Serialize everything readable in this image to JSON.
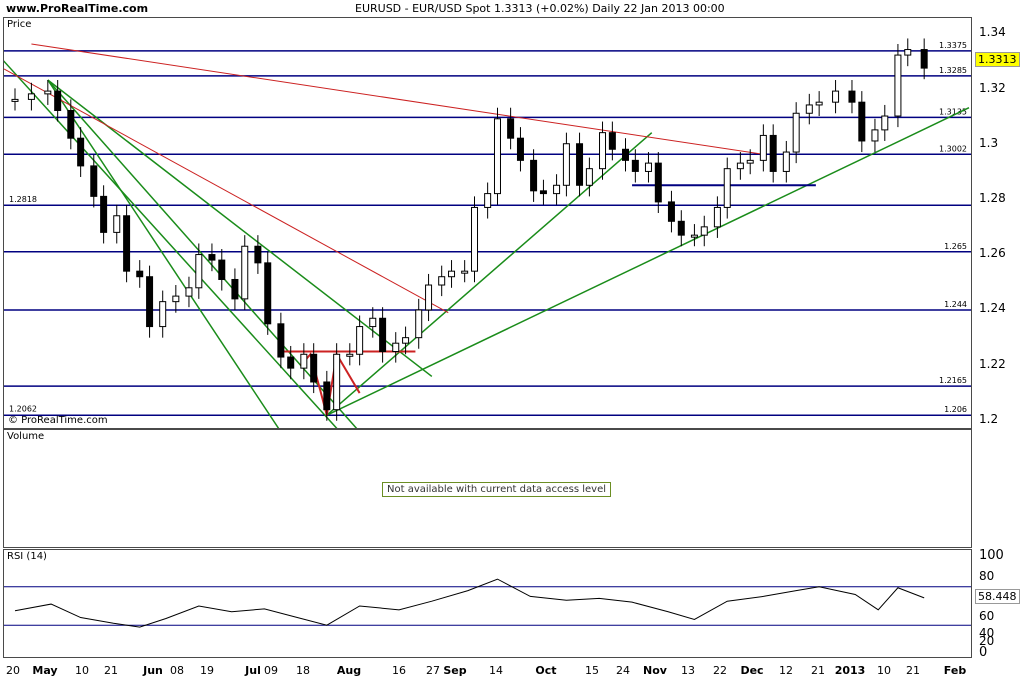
{
  "header": {
    "site": "www.ProRealTime.com",
    "instrument": "EURUSD - EUR/USD Spot    1.3313 (+0.02%)    Daily  22 Jan 2013 00:00"
  },
  "price_panel": {
    "title": "Price",
    "copyright": "© ProRealTime.com",
    "last_price_tag": "1.3313",
    "axis_ticks": [
      "1.34",
      "1.32",
      "1.3",
      "1.28",
      "1.26",
      "1.24",
      "1.22",
      "1.2"
    ],
    "level_labels": [
      {
        "label": "1.3375",
        "value": 1.3375
      },
      {
        "label": "1.3285",
        "value": 1.3285
      },
      {
        "label": "1.3135",
        "value": 1.3135
      },
      {
        "label": "1.3002",
        "value": 1.3002
      },
      {
        "label": "1.2818",
        "value": 1.2818
      },
      {
        "label": "1.265",
        "value": 1.265
      },
      {
        "label": "1.244",
        "value": 1.244
      },
      {
        "label": "1.2165",
        "value": 1.2165
      },
      {
        "label": "1.2062",
        "value": 1.2062
      },
      {
        "label": "1.206",
        "value": 1.206
      }
    ]
  },
  "volume_panel": {
    "title": "Volume",
    "notice": "Not available with current data access level"
  },
  "rsi_panel": {
    "title": "RSI (14)",
    "last_value_tag": "58.448",
    "axis_ticks": [
      "100",
      "80",
      "60",
      "40",
      "20",
      "0"
    ]
  },
  "x_axis": [
    "20",
    "May",
    "10",
    "21",
    "Jun",
    "08",
    "19",
    "Jul",
    "09",
    "18",
    "Aug",
    "16",
    "27",
    "Sep",
    "14",
    "Oct",
    "15",
    "24",
    "Nov",
    "13",
    "22",
    "Dec",
    "12",
    "21",
    "2013",
    "10",
    "21",
    "Feb"
  ],
  "colors": {
    "trend": "#1a8c1a",
    "resistance": "#cc2222",
    "level": "#000080",
    "rsi": "#000000"
  },
  "chart_data": {
    "type": "candlestick",
    "title": "EURUSD - EUR/USD Spot",
    "timeframe": "Daily",
    "last": {
      "close": 1.3313,
      "change_pct": 0.02,
      "date": "22 Jan 2013"
    },
    "x_range": [
      "2012-04-20",
      "2013-02-01"
    ],
    "ylim": [
      1.195,
      1.345
    ],
    "close_series": [
      [
        "2012-04-20",
        1.32
      ],
      [
        "2012-04-25",
        1.322
      ],
      [
        "2012-04-30",
        1.323
      ],
      [
        "2012-05-03",
        1.316
      ],
      [
        "2012-05-07",
        1.306
      ],
      [
        "2012-05-10",
        1.296
      ],
      [
        "2012-05-14",
        1.285
      ],
      [
        "2012-05-17",
        1.272
      ],
      [
        "2012-05-21",
        1.278
      ],
      [
        "2012-05-24",
        1.258
      ],
      [
        "2012-05-28",
        1.256
      ],
      [
        "2012-05-31",
        1.238
      ],
      [
        "2012-06-04",
        1.247
      ],
      [
        "2012-06-08",
        1.249
      ],
      [
        "2012-06-12",
        1.252
      ],
      [
        "2012-06-15",
        1.264
      ],
      [
        "2012-06-19",
        1.262
      ],
      [
        "2012-06-22",
        1.255
      ],
      [
        "2012-06-26",
        1.248
      ],
      [
        "2012-06-29",
        1.267
      ],
      [
        "2012-07-03",
        1.261
      ],
      [
        "2012-07-06",
        1.239
      ],
      [
        "2012-07-10",
        1.227
      ],
      [
        "2012-07-13",
        1.223
      ],
      [
        "2012-07-17",
        1.228
      ],
      [
        "2012-07-20",
        1.218
      ],
      [
        "2012-07-24",
        1.208
      ],
      [
        "2012-07-27",
        1.228
      ],
      [
        "2012-07-31",
        1.228
      ],
      [
        "2012-08-03",
        1.238
      ],
      [
        "2012-08-07",
        1.241
      ],
      [
        "2012-08-10",
        1.229
      ],
      [
        "2012-08-14",
        1.232
      ],
      [
        "2012-08-17",
        1.234
      ],
      [
        "2012-08-21",
        1.244
      ],
      [
        "2012-08-24",
        1.253
      ],
      [
        "2012-08-28",
        1.256
      ],
      [
        "2012-08-31",
        1.258
      ],
      [
        "2012-09-04",
        1.258
      ],
      [
        "2012-09-07",
        1.281
      ],
      [
        "2012-09-11",
        1.286
      ],
      [
        "2012-09-14",
        1.313
      ],
      [
        "2012-09-18",
        1.306
      ],
      [
        "2012-09-21",
        1.298
      ],
      [
        "2012-09-25",
        1.287
      ],
      [
        "2012-09-28",
        1.286
      ],
      [
        "2012-10-02",
        1.289
      ],
      [
        "2012-10-05",
        1.304
      ],
      [
        "2012-10-09",
        1.289
      ],
      [
        "2012-10-12",
        1.295
      ],
      [
        "2012-10-16",
        1.308
      ],
      [
        "2012-10-19",
        1.302
      ],
      [
        "2012-10-23",
        1.298
      ],
      [
        "2012-10-26",
        1.294
      ],
      [
        "2012-10-30",
        1.297
      ],
      [
        "2012-11-02",
        1.283
      ],
      [
        "2012-11-06",
        1.276
      ],
      [
        "2012-11-09",
        1.271
      ],
      [
        "2012-11-13",
        1.271
      ],
      [
        "2012-11-16",
        1.274
      ],
      [
        "2012-11-20",
        1.281
      ],
      [
        "2012-11-23",
        1.295
      ],
      [
        "2012-11-27",
        1.297
      ],
      [
        "2012-11-30",
        1.298
      ],
      [
        "2012-12-04",
        1.307
      ],
      [
        "2012-12-07",
        1.294
      ],
      [
        "2012-12-11",
        1.301
      ],
      [
        "2012-12-14",
        1.315
      ],
      [
        "2012-12-18",
        1.318
      ],
      [
        "2012-12-21",
        1.319
      ],
      [
        "2012-12-26",
        1.323
      ],
      [
        "2012-12-31",
        1.319
      ],
      [
        "2013-01-03",
        1.305
      ],
      [
        "2013-01-07",
        1.309
      ],
      [
        "2013-01-10",
        1.314
      ],
      [
        "2013-01-14",
        1.336
      ],
      [
        "2013-01-17",
        1.338
      ],
      [
        "2013-01-22",
        1.3313
      ]
    ],
    "horizontal_levels": [
      1.3375,
      1.3285,
      1.3135,
      1.3002,
      1.2818,
      1.265,
      1.244,
      1.2165,
      1.206
    ],
    "rsi_series": [
      [
        "2012-04-20",
        45
      ],
      [
        "2012-05-01",
        52
      ],
      [
        "2012-05-10",
        38
      ],
      [
        "2012-05-20",
        32
      ],
      [
        "2012-05-28",
        28
      ],
      [
        "2012-06-05",
        37
      ],
      [
        "2012-06-15",
        50
      ],
      [
        "2012-06-25",
        44
      ],
      [
        "2012-07-05",
        47
      ],
      [
        "2012-07-15",
        38
      ],
      [
        "2012-07-24",
        30
      ],
      [
        "2012-08-03",
        50
      ],
      [
        "2012-08-15",
        46
      ],
      [
        "2012-08-25",
        55
      ],
      [
        "2012-09-05",
        66
      ],
      [
        "2012-09-14",
        78
      ],
      [
        "2012-09-24",
        60
      ],
      [
        "2012-10-05",
        56
      ],
      [
        "2012-10-15",
        58
      ],
      [
        "2012-10-25",
        54
      ],
      [
        "2012-11-05",
        44
      ],
      [
        "2012-11-13",
        36
      ],
      [
        "2012-11-23",
        55
      ],
      [
        "2012-12-04",
        60
      ],
      [
        "2012-12-14",
        66
      ],
      [
        "2012-12-21",
        70
      ],
      [
        "2013-01-01",
        62
      ],
      [
        "2013-01-08",
        46
      ],
      [
        "2013-01-14",
        69
      ],
      [
        "2013-01-22",
        58.448
      ]
    ],
    "rsi_ylim": [
      0,
      100
    ]
  }
}
